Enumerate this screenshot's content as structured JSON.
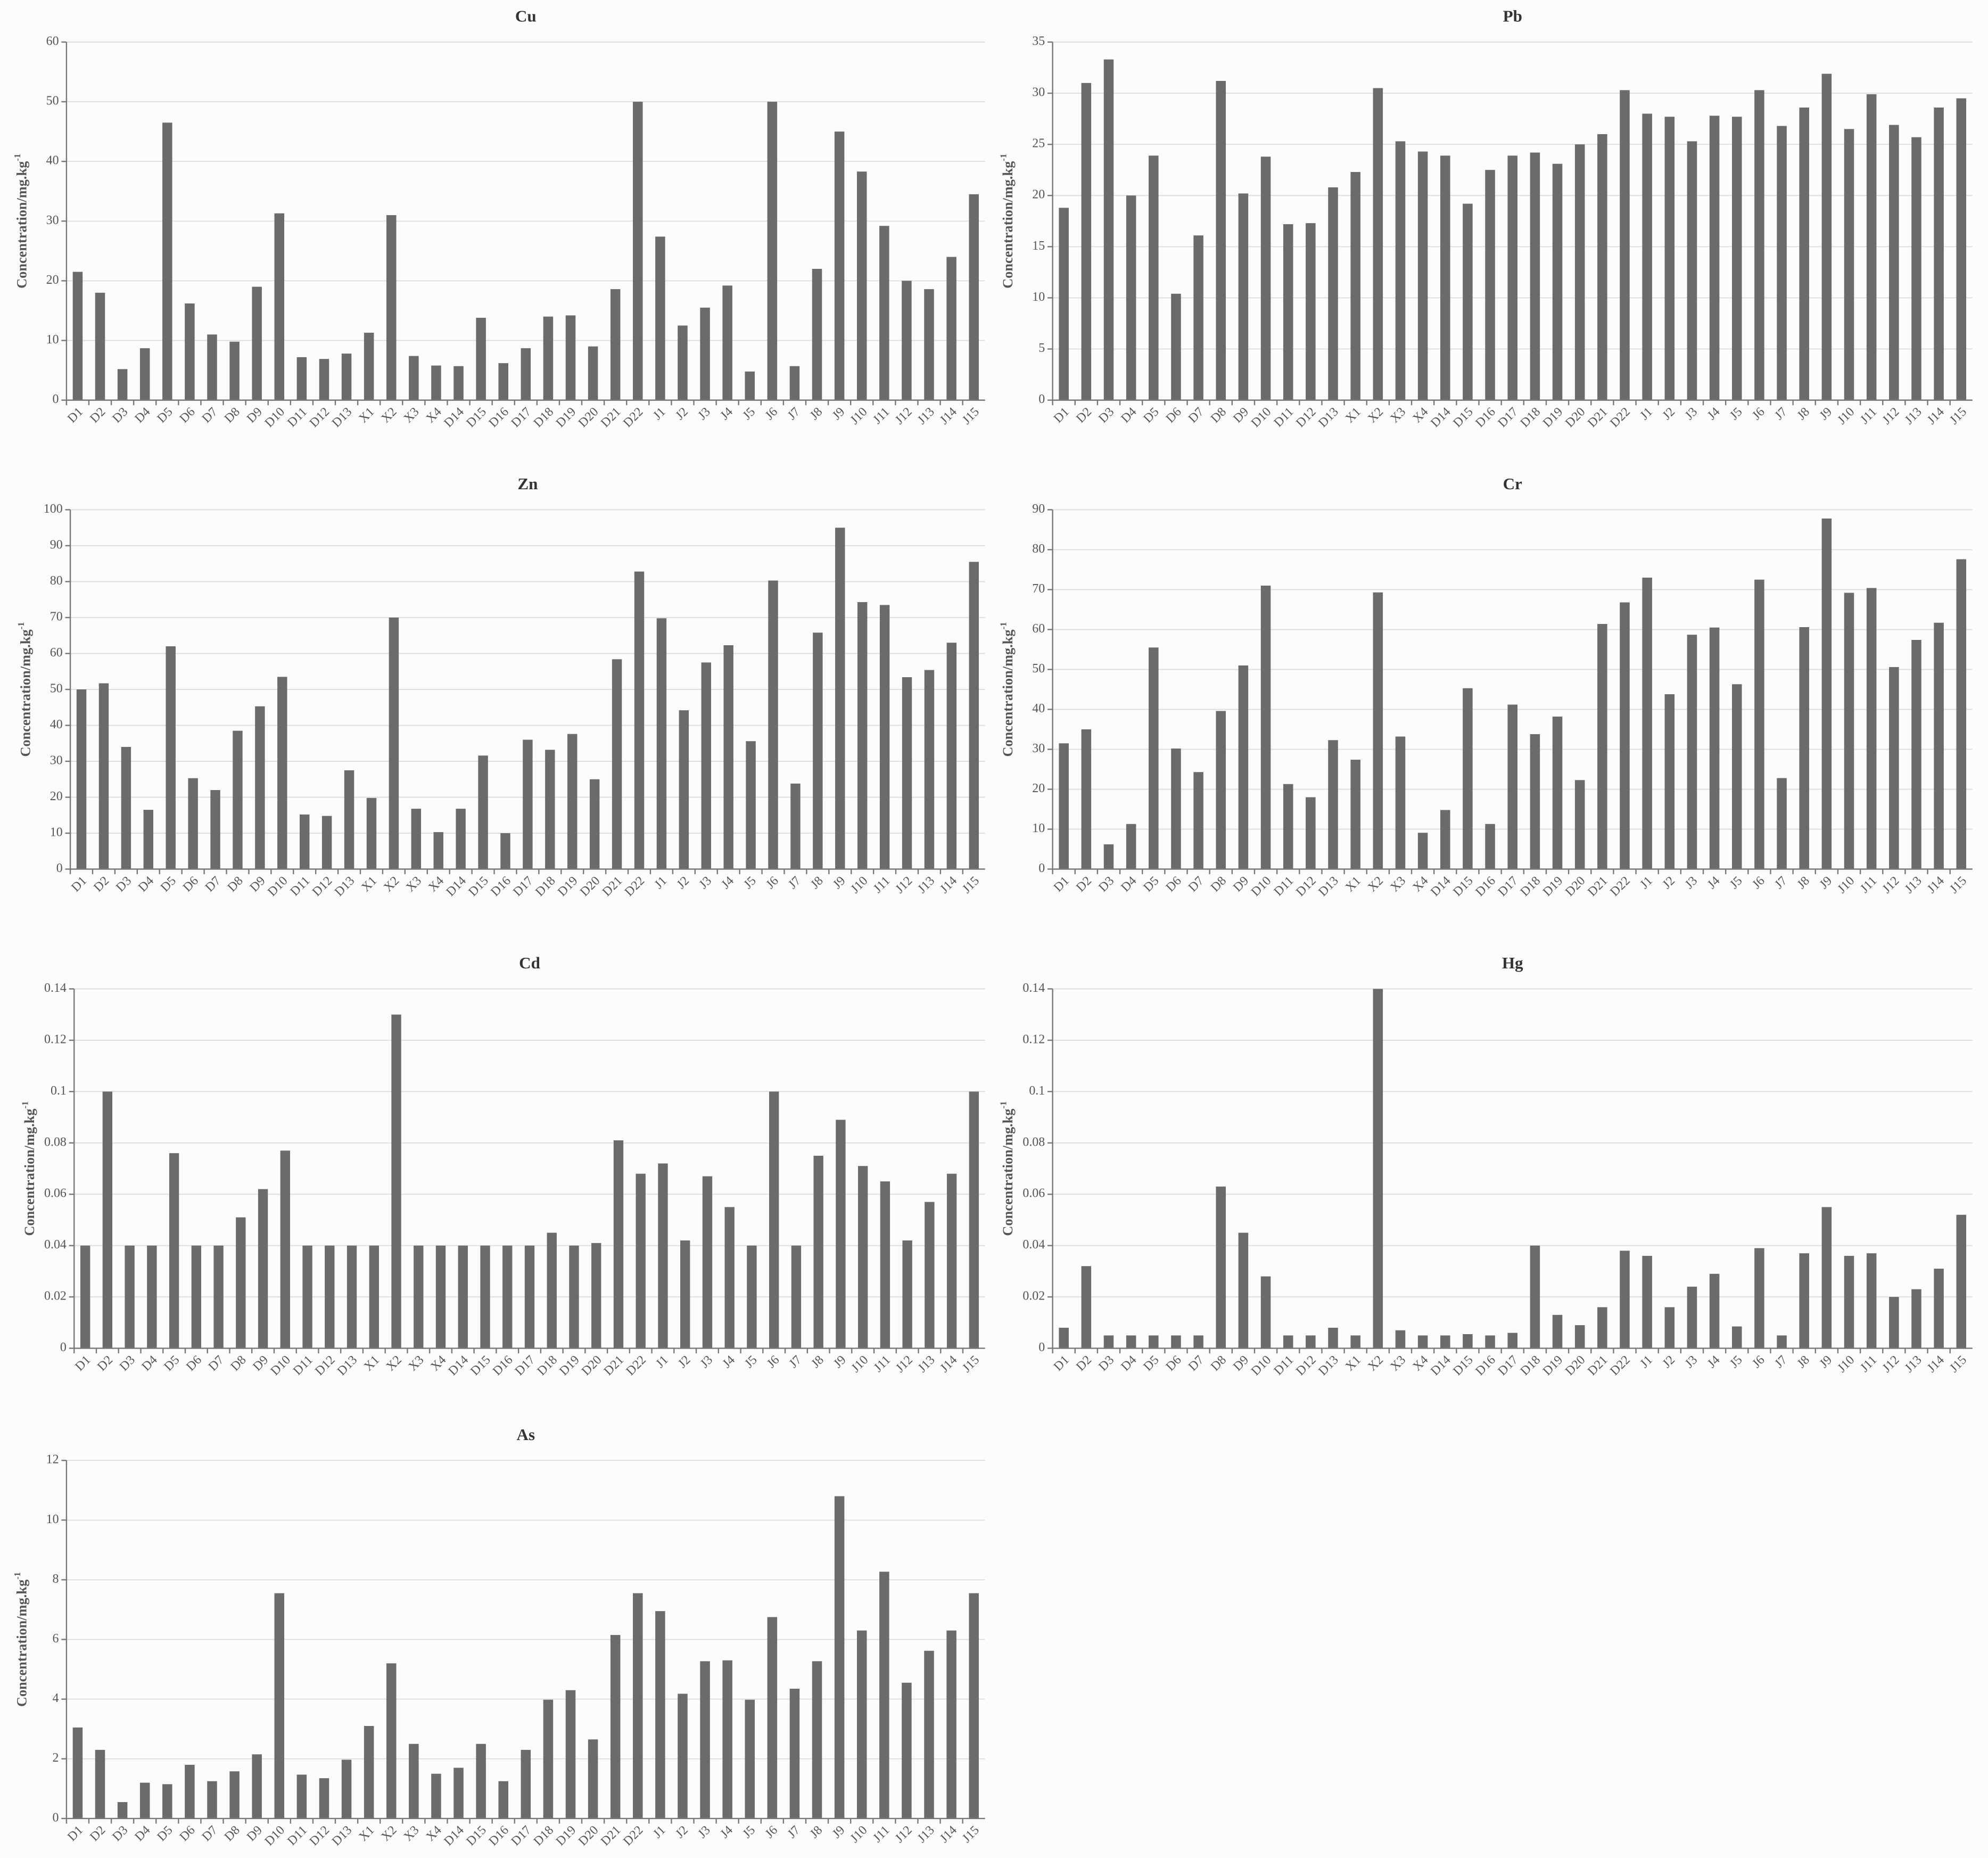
{
  "chart_data": [
    {
      "type": "bar",
      "title": "Cu",
      "y_label": "Concentration/mg.kg",
      "y_label_sup": "-1",
      "color": "#6b6b6b",
      "grid": true,
      "categories": [
        "D1",
        "D2",
        "D3",
        "D4",
        "D5",
        "D6",
        "D7",
        "D8",
        "D9",
        "D10",
        "D11",
        "D12",
        "D13",
        "X1",
        "X2",
        "X3",
        "X4",
        "D14",
        "D15",
        "D16",
        "D17",
        "D18",
        "D19",
        "D20",
        "D21",
        "D22",
        "J1",
        "J2",
        "J3",
        "J4",
        "J5",
        "J6",
        "J7",
        "J8",
        "J9",
        "J10",
        "J11",
        "J12",
        "J13",
        "J14",
        "J15"
      ],
      "values": [
        21.5,
        18,
        5.2,
        8.7,
        46.5,
        16.2,
        11,
        9.8,
        19,
        31.3,
        7.2,
        6.9,
        7.8,
        11.3,
        31,
        7.4,
        5.8,
        5.7,
        13.8,
        6.2,
        8.7,
        14,
        14.2,
        9,
        18.6,
        50,
        27.4,
        12.5,
        15.5,
        19.2,
        4.8,
        50,
        5.7,
        22,
        45,
        38.3,
        29.2,
        20,
        18.6,
        24,
        34.5
      ],
      "ylim": [
        0,
        60
      ],
      "yticks": [
        0,
        10,
        20,
        30,
        40,
        50,
        60
      ]
    },
    {
      "type": "bar",
      "title": "Pb",
      "y_label": "Concentration/mg.kg",
      "y_label_sup": "-1",
      "color": "#6b6b6b",
      "grid": true,
      "categories": [
        "D1",
        "D2",
        "D3",
        "D4",
        "D5",
        "D6",
        "D7",
        "D8",
        "D9",
        "D10",
        "D11",
        "D12",
        "D13",
        "X1",
        "X2",
        "X3",
        "X4",
        "D14",
        "D15",
        "D16",
        "D17",
        "D18",
        "D19",
        "D20",
        "D21",
        "D22",
        "J1",
        "J2",
        "J3",
        "J4",
        "J5",
        "J6",
        "J7",
        "J8",
        "J9",
        "J10",
        "J11",
        "J12",
        "J13",
        "J14",
        "J15"
      ],
      "values": [
        18.8,
        31,
        33.3,
        20,
        23.9,
        10.4,
        16.1,
        31.2,
        20.2,
        23.8,
        17.2,
        17.3,
        20.8,
        22.3,
        30.5,
        25.3,
        24.3,
        23.9,
        19.2,
        22.5,
        23.9,
        24.2,
        23.1,
        25,
        26,
        30.3,
        28,
        27.7,
        25.3,
        27.8,
        27.7,
        30.3,
        26.8,
        28.6,
        31.9,
        26.5,
        29.9,
        26.9,
        25.7,
        28.6,
        29.5
      ],
      "ylim": [
        0,
        35
      ],
      "yticks": [
        0,
        5,
        10,
        15,
        20,
        25,
        30,
        35
      ]
    },
    {
      "type": "bar",
      "title": "Zn",
      "y_label": "Concentration/mg.kg",
      "y_label_sup": "-1",
      "color": "#6b6b6b",
      "grid": true,
      "categories": [
        "D1",
        "D2",
        "D3",
        "D4",
        "D5",
        "D6",
        "D7",
        "D8",
        "D9",
        "D10",
        "D11",
        "D12",
        "D13",
        "X1",
        "X2",
        "X3",
        "X4",
        "D14",
        "D15",
        "D16",
        "D17",
        "D18",
        "D19",
        "D20",
        "D21",
        "D22",
        "J1",
        "J2",
        "J3",
        "J4",
        "J5",
        "J6",
        "J7",
        "J8",
        "J9",
        "J10",
        "J11",
        "J12",
        "J13",
        "J14",
        "J15"
      ],
      "values": [
        50,
        51.7,
        34,
        16.5,
        62,
        25.3,
        22,
        38.5,
        45.3,
        53.5,
        15.2,
        14.8,
        27.5,
        19.8,
        70,
        16.8,
        10.3,
        16.8,
        31.6,
        10,
        36,
        33.2,
        37.6,
        25,
        58.4,
        82.8,
        69.8,
        44.2,
        57.5,
        62.3,
        35.6,
        80.3,
        23.8,
        65.8,
        95,
        74.3,
        73.5,
        53.4,
        55.4,
        63,
        85.5
      ],
      "ylim": [
        0,
        100
      ],
      "yticks": [
        0,
        10,
        20,
        30,
        40,
        50,
        60,
        70,
        80,
        90,
        100
      ]
    },
    {
      "type": "bar",
      "title": "Cr",
      "y_label": "Concentration/mg.kg",
      "y_label_sup": "-1",
      "color": "#6b6b6b",
      "grid": true,
      "categories": [
        "D1",
        "D2",
        "D3",
        "D4",
        "D5",
        "D6",
        "D7",
        "D8",
        "D9",
        "D10",
        "D11",
        "D12",
        "D13",
        "X1",
        "X2",
        "X3",
        "X4",
        "D14",
        "D15",
        "D16",
        "D17",
        "D18",
        "D19",
        "D20",
        "D21",
        "D22",
        "J1",
        "J2",
        "J3",
        "J4",
        "J5",
        "J6",
        "J7",
        "J8",
        "J9",
        "J10",
        "J11",
        "J12",
        "J13",
        "J14",
        "J15"
      ],
      "values": [
        31.5,
        35,
        6.2,
        11.3,
        55.5,
        30.2,
        24.3,
        39.6,
        51,
        71,
        21.3,
        18,
        32.3,
        27.4,
        69.3,
        33.2,
        9.1,
        14.8,
        45.3,
        11.3,
        41.2,
        33.8,
        38.2,
        22.3,
        61.4,
        66.8,
        73,
        43.8,
        58.7,
        60.5,
        46.3,
        72.5,
        22.8,
        60.6,
        87.8,
        69.2,
        70.4,
        50.6,
        57.4,
        61.7,
        77.6
      ],
      "ylim": [
        0,
        90
      ],
      "yticks": [
        0,
        10,
        20,
        30,
        40,
        50,
        60,
        70,
        80,
        90
      ]
    },
    {
      "type": "bar",
      "title": "Cd",
      "y_label": "Concentration/mg.kg",
      "y_label_sup": "-1",
      "color": "#6b6b6b",
      "grid": true,
      "categories": [
        "D1",
        "D2",
        "D3",
        "D4",
        "D5",
        "D6",
        "D7",
        "D8",
        "D9",
        "D10",
        "D11",
        "D12",
        "D13",
        "X1",
        "X2",
        "X3",
        "X4",
        "D14",
        "D15",
        "D16",
        "D17",
        "D18",
        "D19",
        "D20",
        "D21",
        "D22",
        "J1",
        "J2",
        "J3",
        "J4",
        "J5",
        "J6",
        "J7",
        "J8",
        "J9",
        "J10",
        "J11",
        "J12",
        "J13",
        "J14",
        "J15"
      ],
      "values": [
        0.04,
        0.1,
        0.04,
        0.04,
        0.076,
        0.04,
        0.04,
        0.051,
        0.062,
        0.077,
        0.04,
        0.04,
        0.04,
        0.04,
        0.13,
        0.04,
        0.04,
        0.04,
        0.04,
        0.04,
        0.04,
        0.045,
        0.04,
        0.041,
        0.081,
        0.068,
        0.072,
        0.042,
        0.067,
        0.055,
        0.04,
        0.1,
        0.04,
        0.075,
        0.089,
        0.071,
        0.065,
        0.042,
        0.057,
        0.068,
        0.1
      ],
      "ylim": [
        0,
        0.14
      ],
      "yticks": [
        0,
        0.02,
        0.04,
        0.06,
        0.08,
        0.1,
        0.12,
        0.14
      ]
    },
    {
      "type": "bar",
      "title": "Hg",
      "y_label": "Concentration/mg.kg",
      "y_label_sup": "-1",
      "color": "#6b6b6b",
      "grid": true,
      "categories": [
        "D1",
        "D2",
        "D3",
        "D4",
        "D5",
        "D6",
        "D7",
        "D8",
        "D9",
        "D10",
        "D11",
        "D12",
        "D13",
        "X1",
        "X2",
        "X3",
        "X4",
        "D14",
        "D15",
        "D16",
        "D17",
        "D18",
        "D19",
        "D20",
        "D21",
        "D22",
        "J1",
        "J2",
        "J3",
        "J4",
        "J5",
        "J6",
        "J7",
        "J8",
        "J9",
        "J10",
        "J11",
        "J12",
        "J13",
        "J14",
        "J15"
      ],
      "values": [
        0.008,
        0.032,
        0.005,
        0.005,
        0.005,
        0.005,
        0.005,
        0.063,
        0.045,
        0.028,
        0.005,
        0.005,
        0.008,
        0.005,
        0.14,
        0.007,
        0.005,
        0.005,
        0.0055,
        0.005,
        0.006,
        0.04,
        0.013,
        0.009,
        0.016,
        0.038,
        0.036,
        0.016,
        0.024,
        0.029,
        0.0085,
        0.039,
        0.005,
        0.037,
        0.055,
        0.036,
        0.037,
        0.02,
        0.023,
        0.031,
        0.052
      ],
      "ylim": [
        0,
        0.14
      ],
      "yticks": [
        0,
        0.02,
        0.04,
        0.06,
        0.08,
        0.1,
        0.12,
        0.14
      ]
    },
    {
      "type": "bar",
      "title": "As",
      "y_label": "Concentration/mg.kg",
      "y_label_sup": "-1",
      "color": "#6b6b6b",
      "grid": true,
      "categories": [
        "D1",
        "D2",
        "D3",
        "D4",
        "D5",
        "D6",
        "D7",
        "D8",
        "D9",
        "D10",
        "D11",
        "D12",
        "D13",
        "X1",
        "X2",
        "X3",
        "X4",
        "D14",
        "D15",
        "D16",
        "D17",
        "D18",
        "D19",
        "D20",
        "D21",
        "D22",
        "J1",
        "J2",
        "J3",
        "J4",
        "J5",
        "J6",
        "J7",
        "J8",
        "J9",
        "J10",
        "J11",
        "J12",
        "J13",
        "J14",
        "J15"
      ],
      "values": [
        3.05,
        2.3,
        0.55,
        1.2,
        1.15,
        1.8,
        1.25,
        1.58,
        2.15,
        7.55,
        1.47,
        1.35,
        1.97,
        3.1,
        5.2,
        2.5,
        1.5,
        1.7,
        2.5,
        1.25,
        2.3,
        3.98,
        4.3,
        2.65,
        6.15,
        7.55,
        6.95,
        4.18,
        5.27,
        5.3,
        3.98,
        6.75,
        4.35,
        5.27,
        10.8,
        6.3,
        8.27,
        4.55,
        5.62,
        6.3,
        7.55
      ],
      "ylim": [
        0,
        12
      ],
      "yticks": [
        0,
        2,
        4,
        6,
        8,
        10,
        12
      ]
    }
  ]
}
